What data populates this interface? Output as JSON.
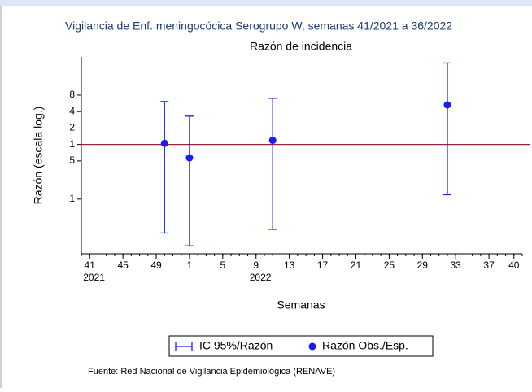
{
  "chart_data": {
    "type": "errorbar",
    "title": "Vigilancia de Enf. meningocócica Serogrupo W, semanas 41/2021 a 36/2022",
    "subtitle": "Razón de incidencia",
    "y_label": "Razón (escala log.)",
    "x_label": "Semanas",
    "source": "Fuente: Red Nacional de Vigilancia Epidemiológica (RENAVE)",
    "y_log": true,
    "xlim": [
      40,
      93
    ],
    "xticks": [
      41,
      45,
      49,
      {
        "value": 53,
        "label": "1"
      },
      {
        "value": 57,
        "label": "5"
      },
      {
        "value": 61,
        "label": "9"
      },
      {
        "value": 65,
        "label": "13"
      },
      {
        "value": 69,
        "label": "17"
      },
      {
        "value": 73,
        "label": "21"
      },
      {
        "value": 77,
        "label": "25"
      },
      {
        "value": 81,
        "label": "29"
      },
      {
        "value": 85,
        "label": "33"
      },
      {
        "value": 89,
        "label": "37"
      },
      {
        "value": 92,
        "label": "40"
      }
    ],
    "x_year_labels": [
      {
        "value": 41,
        "label": "2021"
      },
      {
        "value": 61,
        "label": "2022"
      }
    ],
    "ylim": [
      0.01,
      40
    ],
    "yticks": [
      {
        "value": 0.1,
        "label": ".1"
      },
      {
        "value": 0.5,
        "label": ".5"
      },
      1,
      2,
      4,
      8
    ],
    "reference_line": {
      "value": 1,
      "color": "#a0213a"
    },
    "legend_position": "bottom",
    "series": [
      {
        "name": "Razón Obs./Esp.",
        "ci_name": "IC 95%/Razón",
        "color": "#1a1aff",
        "x": [
          50,
          53,
          63,
          84
        ],
        "values": [
          1.05,
          0.57,
          1.19,
          5.3
        ],
        "lower": [
          0.024,
          0.014,
          0.028,
          0.12
        ],
        "upper": [
          6.1,
          3.3,
          7,
          31
        ]
      }
    ]
  }
}
